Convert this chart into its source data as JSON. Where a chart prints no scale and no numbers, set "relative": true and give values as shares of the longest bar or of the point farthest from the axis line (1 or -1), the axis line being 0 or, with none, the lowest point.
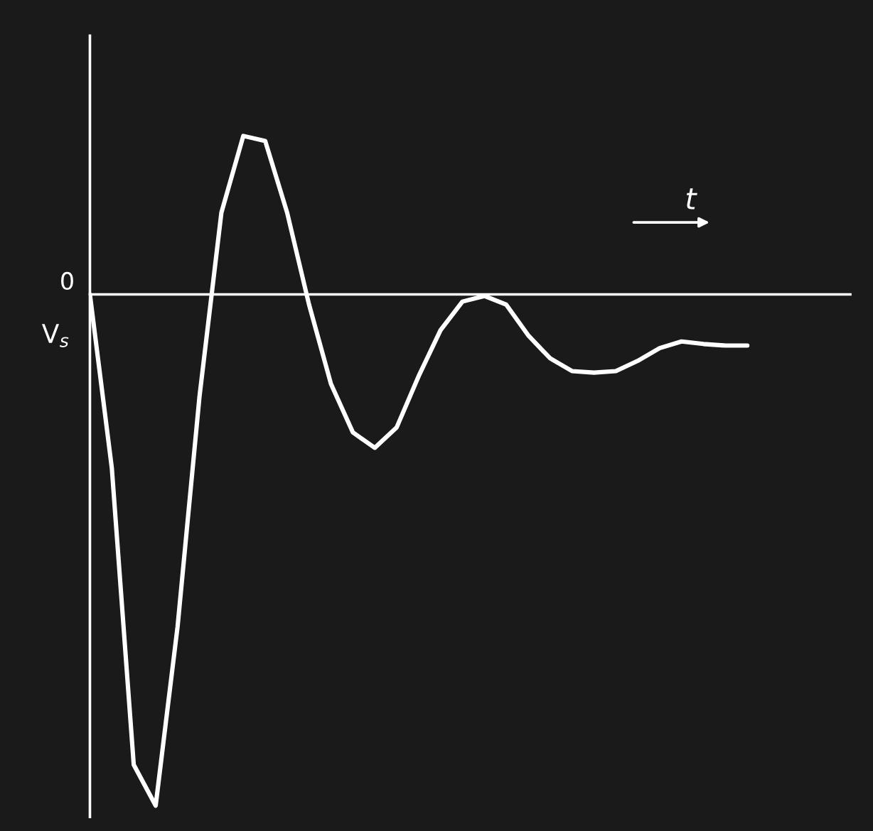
{
  "chart_data": {
    "type": "line",
    "relative": true,
    "xlabel": "t",
    "ylabel": "V$_{s}$",
    "annotations": [
      "0"
    ],
    "categories": [
      null,
      null,
      null,
      null,
      null,
      null,
      null,
      null,
      null,
      null,
      null,
      null,
      null,
      null,
      null,
      null,
      null,
      null,
      null,
      null,
      null,
      null,
      null,
      null,
      null,
      null,
      null,
      null,
      null,
      null,
      null
    ],
    "series": [
      {
        "color": "#ffffff",
        "values": [
          0,
          -0.34,
          -0.92,
          -1,
          -0.65,
          -0.2,
          0.16,
          0.31,
          0.3,
          0.16,
          -0.02,
          -0.175,
          -0.27,
          -0.3,
          -0.26,
          -0.16,
          -0.07,
          -0.014,
          -0.003,
          -0.02,
          -0.08,
          -0.125,
          -0.15,
          -0.153,
          -0.15,
          -0.13,
          -0.105,
          -0.092,
          -0.097,
          -0.1,
          -0.1
        ]
      }
    ],
    "grid": false,
    "legend": false,
    "marker": "none",
    "line_style": "solid"
  }
}
